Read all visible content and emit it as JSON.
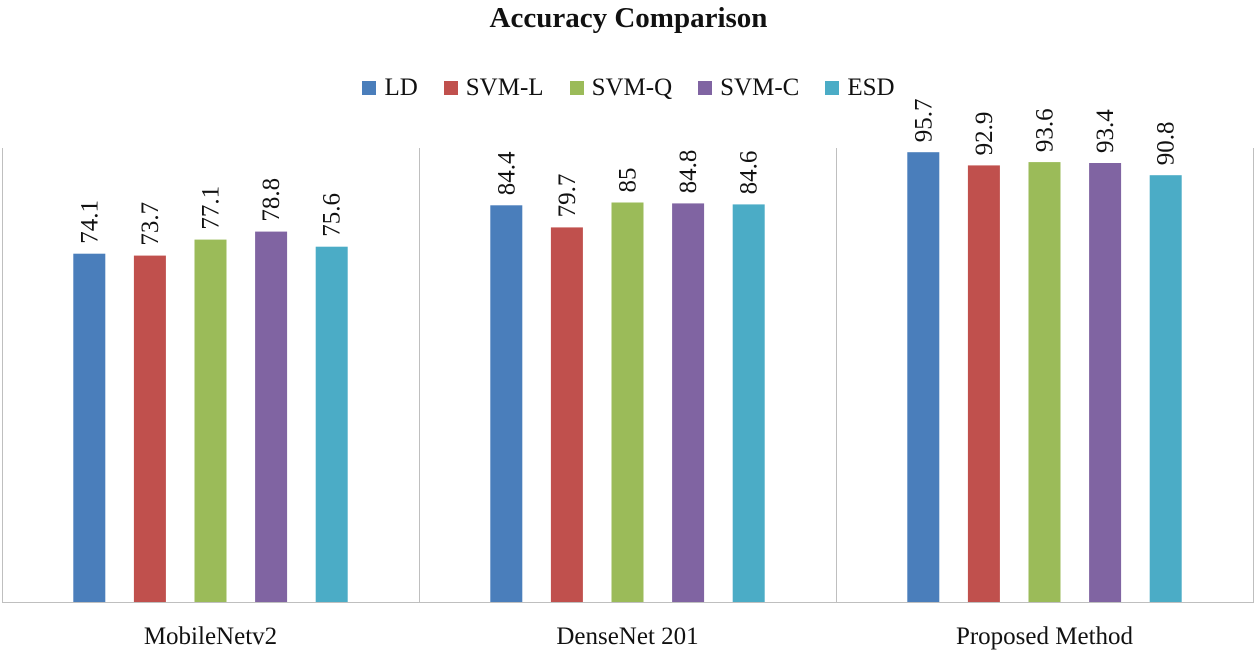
{
  "chart_data": {
    "type": "bar",
    "title": "Accuracy Comparison",
    "xlabel": "",
    "ylabel": "",
    "categories": [
      "MobileNetv2",
      "DenseNet 201",
      "Proposed Method"
    ],
    "series": [
      {
        "name": "LD",
        "color": "#4a7ebb",
        "values": [
          74.1,
          84.4,
          95.7
        ]
      },
      {
        "name": "SVM-L",
        "color": "#c0504d",
        "values": [
          73.7,
          79.7,
          92.9
        ]
      },
      {
        "name": "SVM-Q",
        "color": "#9bbb59",
        "values": [
          77.1,
          85,
          93.6
        ]
      },
      {
        "name": "SVM-C",
        "color": "#8064a2",
        "values": [
          78.8,
          84.8,
          93.4
        ]
      },
      {
        "name": "ESD",
        "color": "#4bacc6",
        "values": [
          75.6,
          84.6,
          90.8
        ]
      }
    ],
    "value_labels": [
      [
        "74.1",
        "84.4",
        "95.7"
      ],
      [
        "73.7",
        "79.7",
        "92.9"
      ],
      [
        "77.1",
        "85",
        "93.6"
      ],
      [
        "78.8",
        "84.8",
        "93.4"
      ],
      [
        "75.6",
        "84.6",
        "90.8"
      ]
    ],
    "ylim": [
      0,
      100
    ],
    "grid": false,
    "legend_position": "top-center"
  }
}
